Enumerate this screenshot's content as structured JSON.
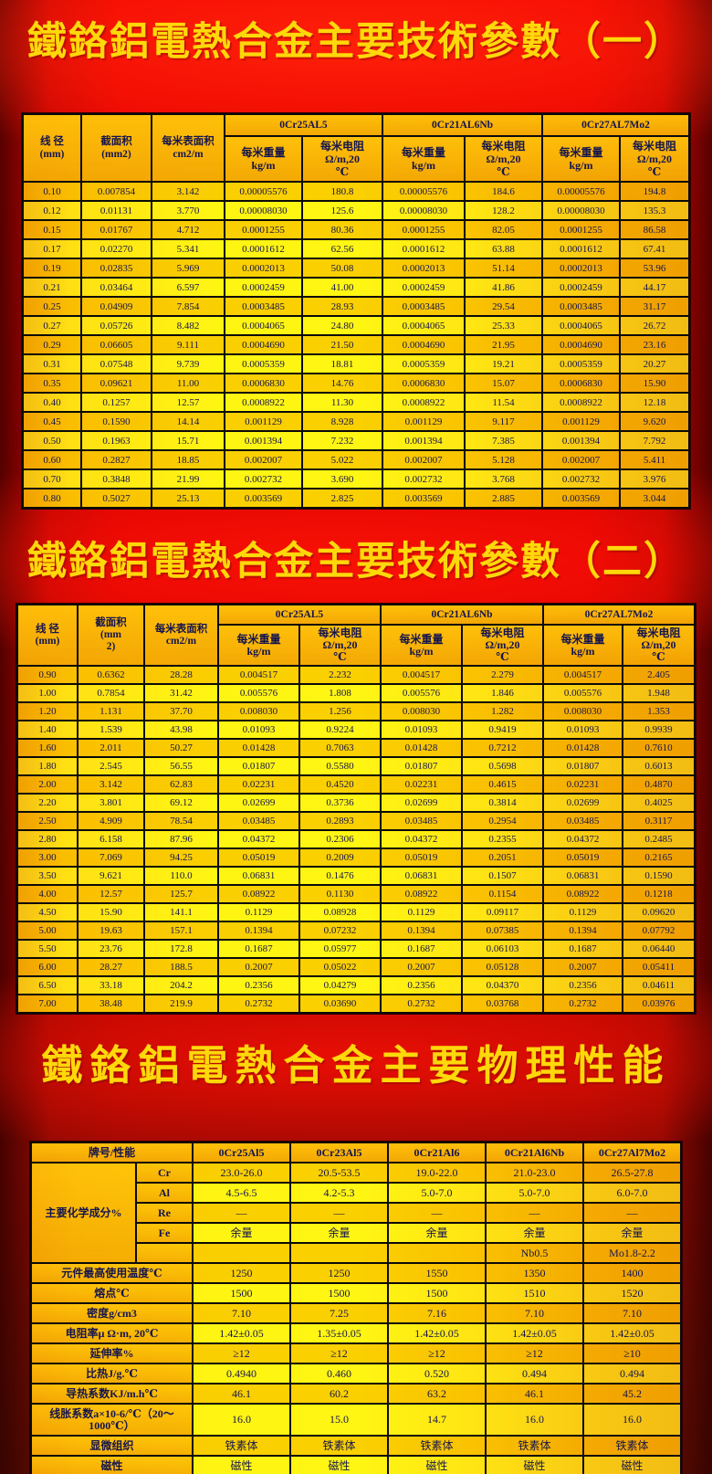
{
  "colors": {
    "bg_red": "#e60301",
    "bg_dark_red": "#5a1003",
    "table_amber": "#f2a304",
    "table_yellow": "#fff200",
    "text_navy": "#14144e",
    "title_gold": "#ffd80a"
  },
  "titles": {
    "t1": "鐵鉻鋁電熱合金主要技術參數（一）",
    "t2": "鐵鉻鋁電熱合金主要技術參數（二）",
    "t3": "鐵鉻鋁電熱合金主要物理性能"
  },
  "table1": {
    "col_headers": [
      "线 径\n(mm)",
      "截面积\n(mm2)",
      "每米表面积\ncm2/m"
    ],
    "alloys": [
      "0Cr25AL5",
      "0Cr21AL6Nb",
      "0Cr27AL7Mo2"
    ],
    "sub_weight": "每米重量\nkg/m",
    "sub_resist": "每米电阻\nΩ/m,20\n℃",
    "rows": [
      [
        "0.10",
        "0.007854",
        "3.142",
        "0.00005576",
        "180.8",
        "0.00005576",
        "184.6",
        "0.00005576",
        "194.8"
      ],
      [
        "0.12",
        "0.01131",
        "3.770",
        "0.00008030",
        "125.6",
        "0.00008030",
        "128.2",
        "0.00008030",
        "135.3"
      ],
      [
        "0.15",
        "0.01767",
        "4.712",
        "0.0001255",
        "80.36",
        "0.0001255",
        "82.05",
        "0.0001255",
        "86.58"
      ],
      [
        "0.17",
        "0.02270",
        "5.341",
        "0.0001612",
        "62.56",
        "0.0001612",
        "63.88",
        "0.0001612",
        "67.41"
      ],
      [
        "0.19",
        "0.02835",
        "5.969",
        "0.0002013",
        "50.08",
        "0.0002013",
        "51.14",
        "0.0002013",
        "53.96"
      ],
      [
        "0.21",
        "0.03464",
        "6.597",
        "0.0002459",
        "41.00",
        "0.0002459",
        "41.86",
        "0.0002459",
        "44.17"
      ],
      [
        "0.25",
        "0.04909",
        "7.854",
        "0.0003485",
        "28.93",
        "0.0003485",
        "29.54",
        "0.0003485",
        "31.17"
      ],
      [
        "0.27",
        "0.05726",
        "8.482",
        "0.0004065",
        "24.80",
        "0.0004065",
        "25.33",
        "0.0004065",
        "26.72"
      ],
      [
        "0.29",
        "0.06605",
        "9.111",
        "0.0004690",
        "21.50",
        "0.0004690",
        "21.95",
        "0.0004690",
        "23.16"
      ],
      [
        "0.31",
        "0.07548",
        "9.739",
        "0.0005359",
        "18.81",
        "0.0005359",
        "19.21",
        "0.0005359",
        "20.27"
      ],
      [
        "0.35",
        "0.09621",
        "11.00",
        "0.0006830",
        "14.76",
        "0.0006830",
        "15.07",
        "0.0006830",
        "15.90"
      ],
      [
        "0.40",
        "0.1257",
        "12.57",
        "0.0008922",
        "11.30",
        "0.0008922",
        "11.54",
        "0.0008922",
        "12.18"
      ],
      [
        "0.45",
        "0.1590",
        "14.14",
        "0.001129",
        "8.928",
        "0.001129",
        "9.117",
        "0.001129",
        "9.620"
      ],
      [
        "0.50",
        "0.1963",
        "15.71",
        "0.001394",
        "7.232",
        "0.001394",
        "7.385",
        "0.001394",
        "7.792"
      ],
      [
        "0.60",
        "0.2827",
        "18.85",
        "0.002007",
        "5.022",
        "0.002007",
        "5.128",
        "0.002007",
        "5.411"
      ],
      [
        "0.70",
        "0.3848",
        "21.99",
        "0.002732",
        "3.690",
        "0.002732",
        "3.768",
        "0.002732",
        "3.976"
      ],
      [
        "0.80",
        "0.5027",
        "25.13",
        "0.003569",
        "2.825",
        "0.003569",
        "2.885",
        "0.003569",
        "3.044"
      ]
    ]
  },
  "table2": {
    "col_headers": [
      "线 径\n(mm)",
      "截面积\n(mm\n2)",
      "每米表面积\ncm2/m"
    ],
    "alloys": [
      "0Cr25AL5",
      "0Cr21AL6Nb",
      "0Cr27AL7Mo2"
    ],
    "sub_weight": "每米重量\nkg/m",
    "sub_resist": "每米电阻\nΩ/m,20\n℃",
    "rows": [
      [
        "0.90",
        "0.6362",
        "28.28",
        "0.004517",
        "2.232",
        "0.004517",
        "2.279",
        "0.004517",
        "2.405"
      ],
      [
        "1.00",
        "0.7854",
        "31.42",
        "0.005576",
        "1.808",
        "0.005576",
        "1.846",
        "0.005576",
        "1.948"
      ],
      [
        "1.20",
        "1.131",
        "37.70",
        "0.008030",
        "1.256",
        "0.008030",
        "1.282",
        "0.008030",
        "1.353"
      ],
      [
        "1.40",
        "1.539",
        "43.98",
        "0.01093",
        "0.9224",
        "0.01093",
        "0.9419",
        "0.01093",
        "0.9939"
      ],
      [
        "1.60",
        "2.011",
        "50.27",
        "0.01428",
        "0.7063",
        "0.01428",
        "0.7212",
        "0.01428",
        "0.7610"
      ],
      [
        "1.80",
        "2.545",
        "56.55",
        "0.01807",
        "0.5580",
        "0.01807",
        "0.5698",
        "0.01807",
        "0.6013"
      ],
      [
        "2.00",
        "3.142",
        "62.83",
        "0.02231",
        "0.4520",
        "0.02231",
        "0.4615",
        "0.02231",
        "0.4870"
      ],
      [
        "2.20",
        "3.801",
        "69.12",
        "0.02699",
        "0.3736",
        "0.02699",
        "0.3814",
        "0.02699",
        "0.4025"
      ],
      [
        "2.50",
        "4.909",
        "78.54",
        "0.03485",
        "0.2893",
        "0.03485",
        "0.2954",
        "0.03485",
        "0.3117"
      ],
      [
        "2.80",
        "6.158",
        "87.96",
        "0.04372",
        "0.2306",
        "0.04372",
        "0.2355",
        "0.04372",
        "0.2485"
      ],
      [
        "3.00",
        "7.069",
        "94.25",
        "0.05019",
        "0.2009",
        "0.05019",
        "0.2051",
        "0.05019",
        "0.2165"
      ],
      [
        "3.50",
        "9.621",
        "110.0",
        "0.06831",
        "0.1476",
        "0.06831",
        "0.1507",
        "0.06831",
        "0.1590"
      ],
      [
        "4.00",
        "12.57",
        "125.7",
        "0.08922",
        "0.1130",
        "0.08922",
        "0.1154",
        "0.08922",
        "0.1218"
      ],
      [
        "4.50",
        "15.90",
        "141.1",
        "0.1129",
        "0.08928",
        "0.1129",
        "0.09117",
        "0.1129",
        "0.09620"
      ],
      [
        "5.00",
        "19.63",
        "157.1",
        "0.1394",
        "0.07232",
        "0.1394",
        "0.07385",
        "0.1394",
        "0.07792"
      ],
      [
        "5.50",
        "23.76",
        "172.8",
        "0.1687",
        "0.05977",
        "0.1687",
        "0.06103",
        "0.1687",
        "0.06440"
      ],
      [
        "6.00",
        "28.27",
        "188.5",
        "0.2007",
        "0.05022",
        "0.2007",
        "0.05128",
        "0.2007",
        "0.05411"
      ],
      [
        "6.50",
        "33.18",
        "204.2",
        "0.2356",
        "0.04279",
        "0.2356",
        "0.04370",
        "0.2356",
        "0.04611"
      ],
      [
        "7.00",
        "38.48",
        "219.9",
        "0.2732",
        "0.03690",
        "0.2732",
        "0.03768",
        "0.2732",
        "0.03976"
      ]
    ]
  },
  "table3": {
    "corner": "牌号/性能",
    "alloys": [
      "0Cr25Al5",
      "0Cr23Al5",
      "0Cr21Al6",
      "0Cr21Al6Nb",
      "0Cr27Al7Mo2"
    ],
    "chem_group": "主要化学成分%",
    "chem_rows": [
      {
        "el": "Cr",
        "vals": [
          "23.0-26.0",
          "20.5-53.5",
          "19.0-22.0",
          "21.0-23.0",
          "26.5-27.8"
        ]
      },
      {
        "el": "Al",
        "vals": [
          "4.5-6.5",
          "4.2-5.3",
          "5.0-7.0",
          "5.0-7.0",
          "6.0-7.0"
        ]
      },
      {
        "el": "Re",
        "vals": [
          "—",
          "—",
          "—",
          "—",
          "—"
        ]
      },
      {
        "el": "Fe",
        "vals": [
          "余量",
          "余量",
          "余量",
          "余量",
          "余量"
        ]
      },
      {
        "el": "",
        "vals": [
          "",
          "",
          "",
          "Nb0.5",
          "Mo1.8-2.2"
        ]
      }
    ],
    "prop_rows": [
      {
        "label": "元件最高使用温度℃",
        "vals": [
          "1250",
          "1250",
          "1550",
          "1350",
          "1400"
        ]
      },
      {
        "label": "熔点℃",
        "vals": [
          "1500",
          "1500",
          "1500",
          "1510",
          "1520"
        ]
      },
      {
        "label": "密度g/cm3",
        "vals": [
          "7.10",
          "7.25",
          "7.16",
          "7.10",
          "7.10"
        ]
      },
      {
        "label": "电阻率μ Ω·m, 20℃",
        "vals": [
          "1.42±0.05",
          "1.35±0.05",
          "1.42±0.05",
          "1.42±0.05",
          "1.42±0.05"
        ]
      },
      {
        "label": "延伸率%",
        "vals": [
          "≥12",
          "≥12",
          "≥12",
          "≥12",
          "≥10"
        ]
      },
      {
        "label": "比热J/g.℃",
        "vals": [
          "0.4940",
          "0.460",
          "0.520",
          "0.494",
          "0.494"
        ]
      },
      {
        "label": "导热系数KJ/m.h℃",
        "vals": [
          "46.1",
          "60.2",
          "63.2",
          "46.1",
          "45.2"
        ]
      },
      {
        "label": "线胀系数a×10-6/℃（20～1000℃）",
        "vals": [
          "16.0",
          "15.0",
          "14.7",
          "16.0",
          "16.0"
        ]
      },
      {
        "label": "显微组织",
        "vals": [
          "铁素体",
          "铁素体",
          "铁素体",
          "铁素体",
          "铁素体"
        ]
      },
      {
        "label": "磁性",
        "vals": [
          "磁性",
          "磁性",
          "磁性",
          "磁性",
          "磁性"
        ]
      }
    ]
  }
}
